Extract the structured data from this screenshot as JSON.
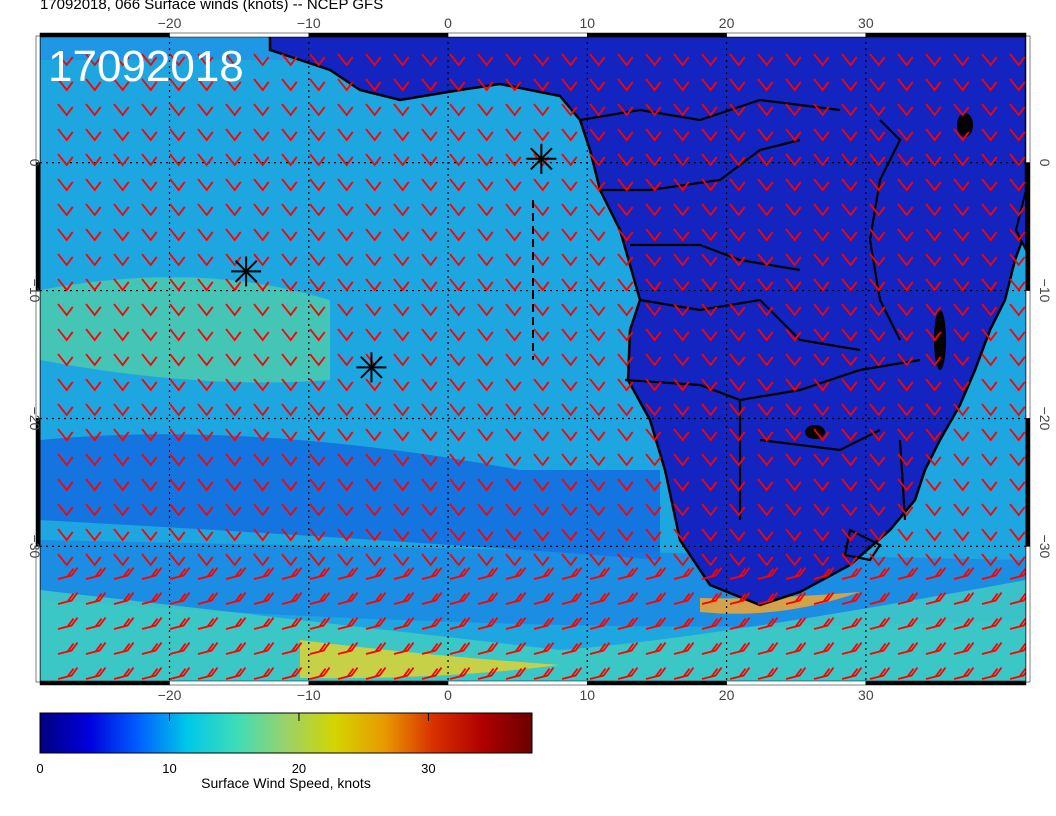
{
  "title": "17092018, 066 Surface winds (knots) -- NCEP GFS",
  "stamp": "17092018",
  "lon_ticks": [
    -20,
    -10,
    0,
    10,
    20,
    30
  ],
  "lon_tick_labels": [
    "−20",
    "−10",
    "0",
    "10",
    "20",
    "30"
  ],
  "lat_ticks": [
    0,
    -10,
    -20,
    -30
  ],
  "lat_tick_labels": [
    "0",
    "−10",
    "−20",
    "−30"
  ],
  "colorbar": {
    "label": "Surface Wind Speed, knots",
    "min": 0,
    "max": 38,
    "ticks": [
      0,
      10,
      20,
      30
    ],
    "tick_labels": [
      "0",
      "10",
      "20",
      "30"
    ],
    "colormap": [
      "#00007f",
      "#0000dd",
      "#0060ff",
      "#00c8e8",
      "#3fdcb8",
      "#9ad26a",
      "#d4d400",
      "#e89a00",
      "#d83000",
      "#b00000",
      "#6a0000"
    ]
  },
  "colors": {
    "ocean": "#1ea6e0",
    "land": "#1424c0",
    "barb": "#ff0000",
    "coast": "#000000"
  },
  "markers": [
    {
      "name": "star-marker-1",
      "lon": -14.5,
      "lat": -8.5
    },
    {
      "name": "star-marker-2",
      "lon": -5.5,
      "lat": -16
    },
    {
      "name": "star-marker-3",
      "lon": 6.7,
      "lat": 0.3
    }
  ]
}
